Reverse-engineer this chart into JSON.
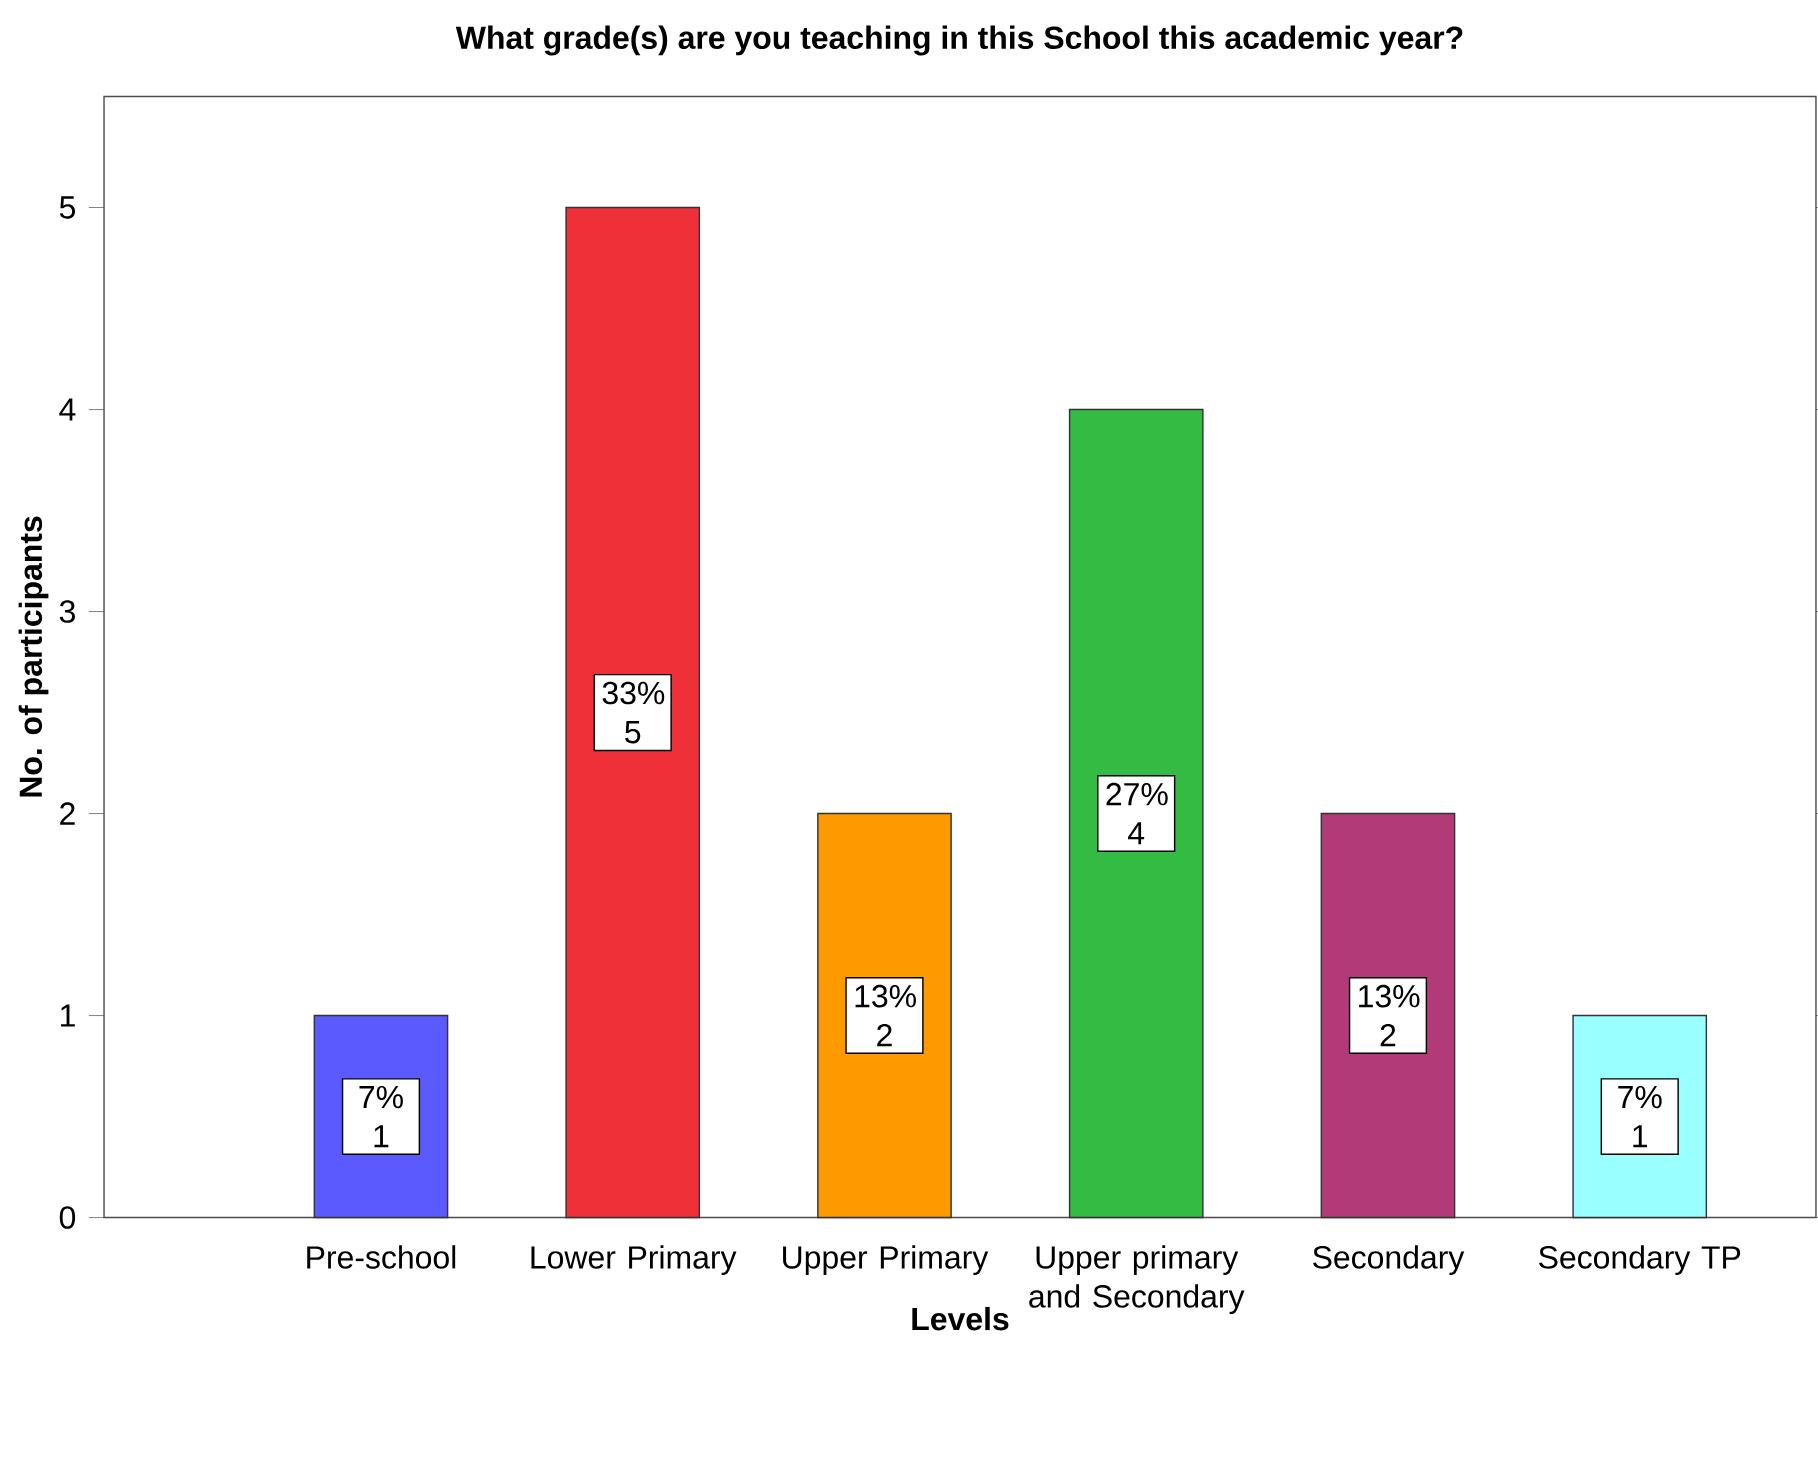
{
  "chart_data": {
    "type": "bar",
    "title": "What grade(s) are you teaching in this School this academic year?",
    "xlabel": "Levels",
    "ylabel": "No. of participants",
    "categories": [
      "Pre-school",
      "Lower Primary",
      "Upper Primary",
      "Upper primary and Secondary",
      "Secondary",
      "Secondary TP"
    ],
    "values": [
      1,
      5,
      2,
      4,
      2,
      1
    ],
    "colors": [
      "#5a5aff",
      "#f03039",
      "#ff9900",
      "#33bb44",
      "#b23a78",
      "#99ffff"
    ],
    "value_labels": [
      "7% 1",
      "33% 5",
      "13% 2",
      "27% 4",
      "13% 2",
      "7% 1"
    ],
    "ylim": [
      0,
      5.55
    ],
    "yticks": [
      0,
      1,
      2,
      3,
      4,
      5
    ],
    "grid": false
  }
}
